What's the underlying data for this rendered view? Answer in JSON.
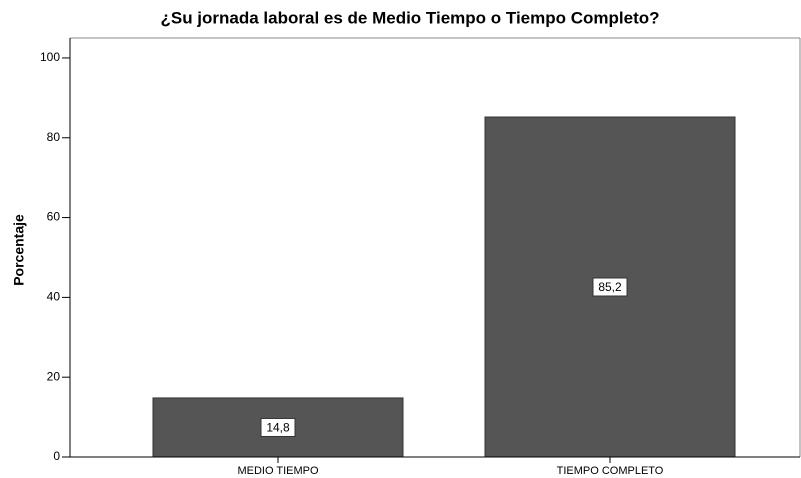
{
  "chart_data": {
    "type": "bar",
    "title": "¿Su jornada laboral es de Medio Tiempo o Tiempo Completo?",
    "y_label": "Porcentaje",
    "categories": [
      "MEDIO TIEMPO",
      "TIEMPO COMPLETO"
    ],
    "values": [
      14.8,
      85.2
    ],
    "value_labels": [
      "14,8",
      "85,2"
    ],
    "color": "#555555",
    "ylim": [
      0,
      105
    ],
    "yticks": [
      0,
      20,
      40,
      60,
      80,
      100
    ],
    "grid": false
  }
}
